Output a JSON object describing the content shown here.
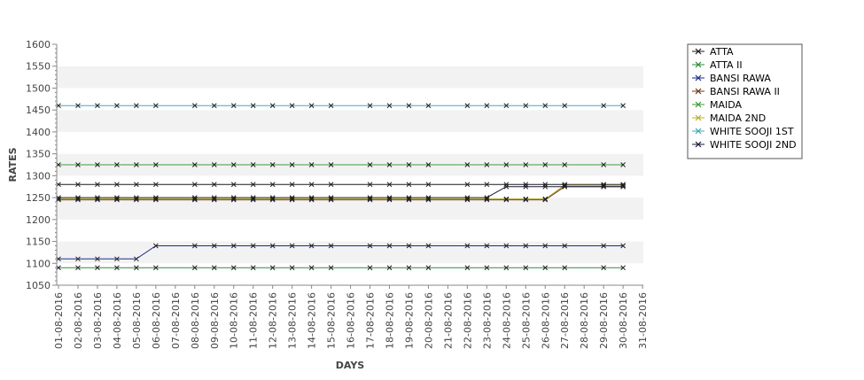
{
  "chart_data": {
    "type": "line",
    "title": "",
    "xlabel": "DAYS",
    "ylabel": "RATES",
    "ylim": [
      1050,
      1600
    ],
    "yticks": [
      1050,
      1100,
      1150,
      1200,
      1250,
      1300,
      1350,
      1400,
      1450,
      1500,
      1550,
      1600
    ],
    "x_labels": [
      "01-08-2016",
      "02-08-2016",
      "03-08-2016",
      "04-08-2016",
      "05-08-2016",
      "06-08-2016",
      "07-08-2016",
      "08-08-2016",
      "09-08-2016",
      "10-08-2016",
      "11-08-2016",
      "12-08-2016",
      "13-08-2016",
      "14-08-2016",
      "15-08-2016",
      "16-08-2016",
      "17-08-2016",
      "18-08-2016",
      "19-08-2016",
      "20-08-2016",
      "21-08-2016",
      "22-08-2016",
      "23-08-2016",
      "24-08-2016",
      "25-08-2016",
      "26-08-2016",
      "27-08-2016",
      "28-08-2016",
      "29-08-2016",
      "30-08-2016",
      "31-08-2016"
    ],
    "grid": "alternating horizontal bands",
    "legend_position": "right",
    "series": [
      {
        "name": "ATTA",
        "color": "#1a1a1a",
        "x": [
          "01-08-2016",
          "02-08-2016",
          "03-08-2016",
          "04-08-2016",
          "05-08-2016",
          "06-08-2016",
          "08-08-2016",
          "09-08-2016",
          "10-08-2016",
          "11-08-2016",
          "12-08-2016",
          "13-08-2016",
          "14-08-2016",
          "15-08-2016",
          "17-08-2016",
          "18-08-2016",
          "19-08-2016",
          "20-08-2016",
          "22-08-2016",
          "23-08-2016",
          "24-08-2016",
          "25-08-2016",
          "26-08-2016",
          "27-08-2016",
          "29-08-2016",
          "30-08-2016"
        ],
        "values": [
          1280,
          1280,
          1280,
          1280,
          1280,
          1280,
          1280,
          1280,
          1280,
          1280,
          1280,
          1280,
          1280,
          1280,
          1280,
          1280,
          1280,
          1280,
          1280,
          1280,
          1280,
          1280,
          1280,
          1280,
          1280,
          1280
        ]
      },
      {
        "name": "ATTA II",
        "color": "#2e8b3e",
        "x": [
          "01-08-2016",
          "02-08-2016",
          "03-08-2016",
          "04-08-2016",
          "05-08-2016",
          "06-08-2016",
          "08-08-2016",
          "09-08-2016",
          "10-08-2016",
          "11-08-2016",
          "12-08-2016",
          "13-08-2016",
          "14-08-2016",
          "15-08-2016",
          "17-08-2016",
          "18-08-2016",
          "19-08-2016",
          "20-08-2016",
          "22-08-2016",
          "23-08-2016",
          "24-08-2016",
          "25-08-2016",
          "26-08-2016",
          "27-08-2016",
          "29-08-2016",
          "30-08-2016"
        ],
        "values": [
          1090,
          1090,
          1090,
          1090,
          1090,
          1090,
          1090,
          1090,
          1090,
          1090,
          1090,
          1090,
          1090,
          1090,
          1090,
          1090,
          1090,
          1090,
          1090,
          1090,
          1090,
          1090,
          1090,
          1090,
          1090,
          1090
        ]
      },
      {
        "name": "BANSI RAWA",
        "color": "#1a2a8a",
        "x": [
          "01-08-2016",
          "02-08-2016",
          "03-08-2016",
          "04-08-2016",
          "05-08-2016",
          "06-08-2016",
          "08-08-2016",
          "09-08-2016",
          "10-08-2016",
          "11-08-2016",
          "12-08-2016",
          "13-08-2016",
          "14-08-2016",
          "15-08-2016",
          "17-08-2016",
          "18-08-2016",
          "19-08-2016",
          "20-08-2016",
          "22-08-2016",
          "23-08-2016",
          "24-08-2016",
          "25-08-2016",
          "26-08-2016",
          "27-08-2016",
          "29-08-2016",
          "30-08-2016"
        ],
        "values": [
          1110,
          1110,
          1110,
          1110,
          1110,
          1140,
          1140,
          1140,
          1140,
          1140,
          1140,
          1140,
          1140,
          1140,
          1140,
          1140,
          1140,
          1140,
          1140,
          1140,
          1140,
          1140,
          1140,
          1140,
          1140,
          1140
        ]
      },
      {
        "name": "BANSI RAWA II",
        "color": "#6b3a1a",
        "x": [
          "01-08-2016",
          "02-08-2016",
          "03-08-2016",
          "04-08-2016",
          "05-08-2016",
          "06-08-2016",
          "08-08-2016",
          "09-08-2016",
          "10-08-2016",
          "11-08-2016",
          "12-08-2016",
          "13-08-2016",
          "14-08-2016",
          "15-08-2016",
          "17-08-2016",
          "18-08-2016",
          "19-08-2016",
          "20-08-2016",
          "22-08-2016",
          "23-08-2016",
          "24-08-2016",
          "25-08-2016",
          "26-08-2016",
          "27-08-2016",
          "29-08-2016",
          "30-08-2016"
        ],
        "values": [
          1245,
          1245,
          1245,
          1245,
          1245,
          1245,
          1245,
          1245,
          1245,
          1245,
          1245,
          1245,
          1245,
          1245,
          1245,
          1245,
          1245,
          1245,
          1245,
          1245,
          1245,
          1245,
          1245,
          1275,
          1275,
          1275
        ]
      },
      {
        "name": "MAIDA",
        "color": "#3a9a3a",
        "x": [
          "01-08-2016",
          "02-08-2016",
          "03-08-2016",
          "04-08-2016",
          "05-08-2016",
          "06-08-2016",
          "08-08-2016",
          "09-08-2016",
          "10-08-2016",
          "11-08-2016",
          "12-08-2016",
          "13-08-2016",
          "14-08-2016",
          "15-08-2016",
          "17-08-2016",
          "18-08-2016",
          "19-08-2016",
          "20-08-2016",
          "22-08-2016",
          "23-08-2016",
          "24-08-2016",
          "25-08-2016",
          "26-08-2016",
          "27-08-2016",
          "29-08-2016",
          "30-08-2016"
        ],
        "values": [
          1325,
          1325,
          1325,
          1325,
          1325,
          1325,
          1325,
          1325,
          1325,
          1325,
          1325,
          1325,
          1325,
          1325,
          1325,
          1325,
          1325,
          1325,
          1325,
          1325,
          1325,
          1325,
          1325,
          1325,
          1325,
          1325
        ]
      },
      {
        "name": "MAIDA 2ND",
        "color": "#b8b020",
        "x": [
          "01-08-2016",
          "02-08-2016",
          "03-08-2016",
          "04-08-2016",
          "05-08-2016",
          "06-08-2016",
          "08-08-2016",
          "09-08-2016",
          "10-08-2016",
          "11-08-2016",
          "12-08-2016",
          "13-08-2016",
          "14-08-2016",
          "15-08-2016",
          "17-08-2016",
          "18-08-2016",
          "19-08-2016",
          "20-08-2016",
          "22-08-2016",
          "23-08-2016",
          "24-08-2016",
          "25-08-2016",
          "26-08-2016",
          "27-08-2016",
          "29-08-2016",
          "30-08-2016"
        ],
        "values": [
          1247,
          1247,
          1247,
          1247,
          1247,
          1247,
          1247,
          1247,
          1247,
          1247,
          1247,
          1247,
          1247,
          1247,
          1247,
          1247,
          1247,
          1247,
          1247,
          1247,
          1247,
          1247,
          1247,
          1278,
          1278,
          1278
        ]
      },
      {
        "name": "WHITE SOOJI 1ST",
        "color": "#40a8b8",
        "x": [
          "01-08-2016",
          "02-08-2016",
          "03-08-2016",
          "04-08-2016",
          "05-08-2016",
          "06-08-2016",
          "08-08-2016",
          "09-08-2016",
          "10-08-2016",
          "11-08-2016",
          "12-08-2016",
          "13-08-2016",
          "14-08-2016",
          "15-08-2016",
          "17-08-2016",
          "18-08-2016",
          "19-08-2016",
          "20-08-2016",
          "22-08-2016",
          "23-08-2016",
          "24-08-2016",
          "25-08-2016",
          "26-08-2016",
          "27-08-2016",
          "29-08-2016",
          "30-08-2016"
        ],
        "values": [
          1460,
          1460,
          1460,
          1460,
          1460,
          1460,
          1460,
          1460,
          1460,
          1460,
          1460,
          1460,
          1460,
          1460,
          1460,
          1460,
          1460,
          1460,
          1460,
          1460,
          1460,
          1460,
          1460,
          1460,
          1460,
          1460
        ]
      },
      {
        "name": "WHITE SOOJI 2ND",
        "color": "#1a1a3a",
        "x": [
          "01-08-2016",
          "02-08-2016",
          "03-08-2016",
          "04-08-2016",
          "05-08-2016",
          "06-08-2016",
          "08-08-2016",
          "09-08-2016",
          "10-08-2016",
          "11-08-2016",
          "12-08-2016",
          "13-08-2016",
          "14-08-2016",
          "15-08-2016",
          "17-08-2016",
          "18-08-2016",
          "19-08-2016",
          "20-08-2016",
          "22-08-2016",
          "23-08-2016",
          "24-08-2016",
          "25-08-2016",
          "26-08-2016",
          "27-08-2016",
          "29-08-2016",
          "30-08-2016"
        ],
        "values": [
          1250,
          1250,
          1250,
          1250,
          1250,
          1250,
          1250,
          1250,
          1250,
          1250,
          1250,
          1250,
          1250,
          1250,
          1250,
          1250,
          1250,
          1250,
          1250,
          1250,
          1275,
          1275,
          1275,
          1275,
          1275,
          1275
        ]
      }
    ]
  }
}
